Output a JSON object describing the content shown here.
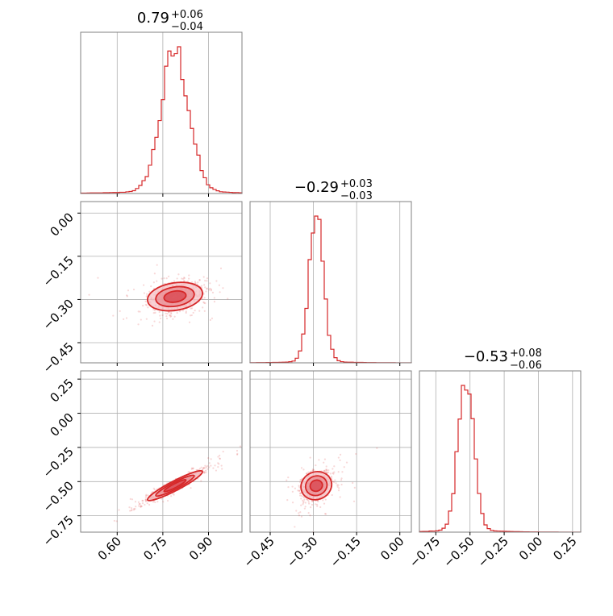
{
  "colors": {
    "series": "#d62728",
    "fill_light": "#f6c2c5",
    "fill_mid": "#ea8d93",
    "fill_dark": "#d8434c",
    "grid": "#b0b0b0",
    "frame": "#808080"
  },
  "chart_data": {
    "type": "corner",
    "parameters": [
      {
        "median": "0.79",
        "plus": "+0.06",
        "minus": "−0.04",
        "range": [
          0.48,
          1.01
        ],
        "ticks": [
          "0.60",
          "0.75",
          "0.90"
        ],
        "tick_values": [
          0.6,
          0.75,
          0.9
        ]
      },
      {
        "median": "−0.29",
        "plus": "+0.03",
        "minus": "−0.03",
        "range": [
          -0.52,
          0.04
        ],
        "ticks": [
          "−0.45",
          "−0.30",
          "−0.15",
          "0.00"
        ],
        "tick_values": [
          -0.45,
          -0.3,
          -0.15,
          0.0
        ]
      },
      {
        "median": "−0.53",
        "plus": "+0.08",
        "minus": "−0.06",
        "range": [
          -0.87,
          0.31
        ],
        "ticks": [
          "−0.75",
          "−0.50",
          "−0.25",
          "0.00",
          "0.25"
        ],
        "tick_values": [
          -0.75,
          -0.5,
          -0.25,
          0.0,
          0.25
        ]
      }
    ],
    "histograms": [
      {
        "param": 0,
        "peak": 0.79,
        "sigma": 0.045,
        "tail": 0.03
      },
      {
        "param": 1,
        "peak": -0.29,
        "sigma": 0.025,
        "tail": 0.02
      },
      {
        "param": 2,
        "peak": -0.53,
        "sigma": 0.055,
        "tail": 0.03
      }
    ],
    "scatter_pairs": [
      {
        "x_param": 0,
        "y_param": 1,
        "center": [
          0.79,
          -0.29
        ],
        "correlation": 0.3
      },
      {
        "x_param": 0,
        "y_param": 2,
        "center": [
          0.79,
          -0.53
        ],
        "correlation": 0.95
      },
      {
        "x_param": 1,
        "y_param": 2,
        "center": [
          -0.29,
          -0.53
        ],
        "correlation": 0.4
      }
    ],
    "grid": true
  }
}
